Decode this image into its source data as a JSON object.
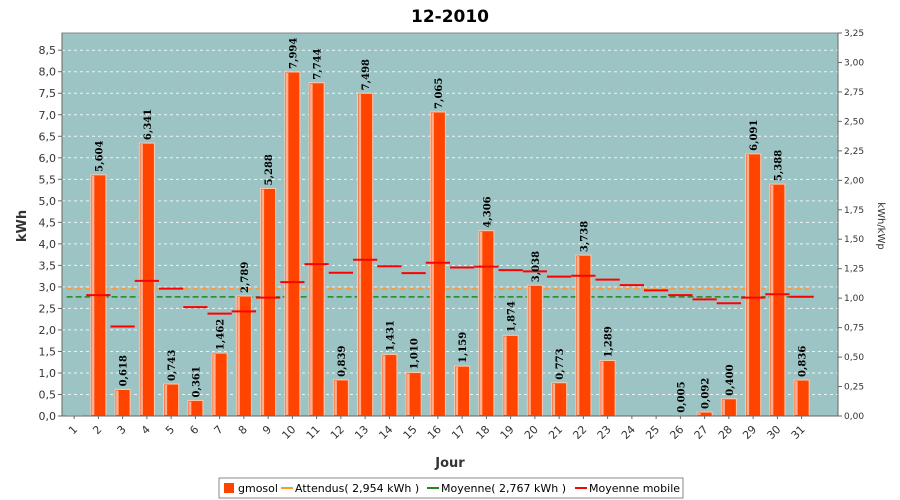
{
  "chart_data": {
    "type": "bar",
    "title": "12-2010",
    "xlabel": "Jour",
    "ylabel": "kWh",
    "y2label": "kWh/kWp",
    "ylim": [
      0,
      8.9
    ],
    "y2lim": [
      0,
      3.25
    ],
    "yticks": [
      "0,0",
      "0,5",
      "1,0",
      "1,5",
      "2,0",
      "2,5",
      "3,0",
      "3,5",
      "4,0",
      "4,5",
      "5,0",
      "5,5",
      "6,0",
      "6,5",
      "7,0",
      "7,5",
      "8,0",
      "8,5"
    ],
    "y2ticks": [
      "0,00",
      "0,25",
      "0,50",
      "0,75",
      "1,00",
      "1,25",
      "1,50",
      "1,75",
      "2,00",
      "2,25",
      "2,50",
      "2,75",
      "3,00",
      "3,25"
    ],
    "categories": [
      "1",
      "2",
      "3",
      "4",
      "5",
      "6",
      "7",
      "8",
      "9",
      "10",
      "11",
      "12",
      "13",
      "14",
      "15",
      "16",
      "17",
      "18",
      "19",
      "20",
      "21",
      "22",
      "23",
      "24",
      "25",
      "26",
      "27",
      "28",
      "29",
      "30",
      "31"
    ],
    "series": [
      {
        "name": "gmosol",
        "values": [
          0.01,
          5.604,
          0.618,
          6.341,
          0.743,
          0.361,
          1.462,
          2.789,
          5.288,
          7.994,
          7.744,
          0.839,
          7.498,
          1.431,
          1.01,
          7.065,
          1.159,
          4.306,
          1.874,
          3.038,
          0.773,
          3.738,
          1.289,
          0,
          0,
          0.005,
          0.092,
          0.4,
          6.091,
          5.388,
          0.836
        ],
        "labels": [
          "",
          "5,604",
          "0,618",
          "6,341",
          "0,743",
          "0,361",
          "1,462",
          "2,789",
          "5,288",
          "7,994",
          "7,744",
          "0,839",
          "7,498",
          "1,431",
          "1,010",
          "7,065",
          "1,159",
          "4,306",
          "1,874",
          "3,038",
          "0,773",
          "3,738",
          "1,289",
          "",
          "",
          "0,005",
          "0,092",
          "0,400",
          "6,091",
          "5,388",
          "0,836"
        ]
      },
      {
        "name": "Attendus( 2,954 kWh )",
        "constant": 2.954
      },
      {
        "name": "Moyenne( 2,767 kWh )",
        "constant": 2.767
      },
      {
        "name": "Moyenne mobile",
        "values": [
          null,
          2.81,
          2.08,
          3.14,
          2.96,
          2.53,
          2.38,
          2.43,
          2.75,
          3.11,
          3.53,
          3.33,
          3.63,
          3.48,
          3.32,
          3.56,
          3.45,
          3.47,
          3.39,
          3.36,
          3.24,
          3.26,
          3.17,
          3.04,
          2.92,
          2.81,
          2.71,
          2.62,
          2.75,
          2.83,
          2.77
        ]
      }
    ],
    "colors": {
      "plot_bg": "#9dc4c4",
      "bar": "#ff4400",
      "bar_edge": "#ffc8b0",
      "expected": "#ff9933",
      "average": "#228822",
      "moving": "#ff0000",
      "grid": "#ffffff"
    },
    "legend": "bottom-center"
  }
}
